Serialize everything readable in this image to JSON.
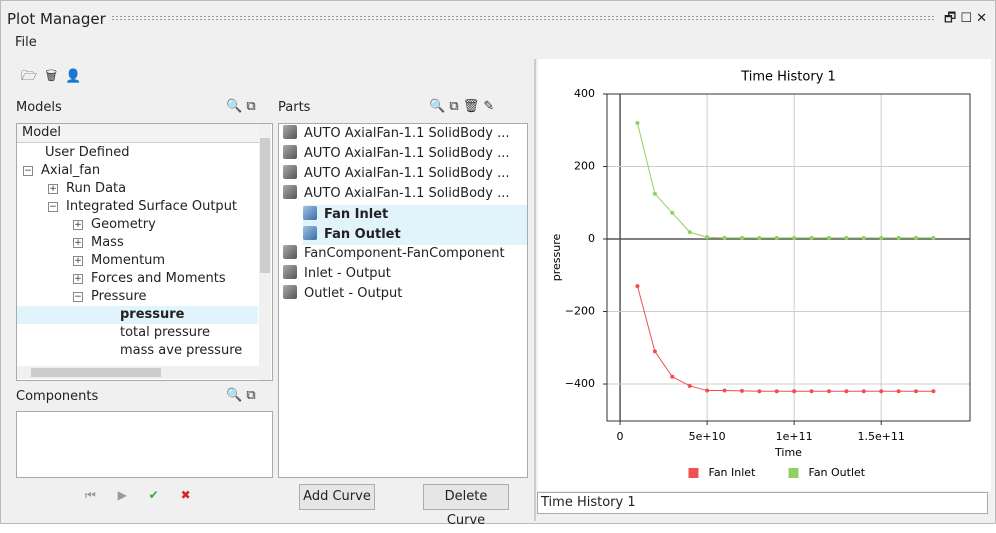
{
  "window": {
    "title": "Plot Manager"
  },
  "menu": [
    "File"
  ],
  "models": {
    "label": "Models",
    "tree_header": "Model",
    "items": [
      "User Defined",
      "Axial_fan",
      "Run Data",
      "Integrated Surface Output",
      "Geometry",
      "Mass",
      "Momentum",
      "Forces and Moments",
      "Pressure",
      "pressure",
      "total pressure",
      "mass ave pressure"
    ]
  },
  "parts": {
    "label": "Parts",
    "items": [
      "AUTO AxialFan-1.1 SolidBody ...",
      "AUTO AxialFan-1.1 SolidBody ...",
      "AUTO AxialFan-1.1 SolidBody ...",
      "AUTO AxialFan-1.1 SolidBody ...",
      "Fan Inlet",
      "Fan Outlet",
      "FanComponent-FanComponent",
      "Inlet - Output",
      "Outlet - Output"
    ]
  },
  "components": {
    "label": "Components"
  },
  "buttons": {
    "add": "Add Curve",
    "delete": "Delete Curve"
  },
  "plot_name": "Time History 1",
  "chart_data": {
    "type": "line",
    "title": "Time History 1",
    "x_label": "Time",
    "y_label": "pressure",
    "x": [
      10000000000,
      20000000000,
      30000000000,
      40000000000,
      50000000000,
      60000000000,
      70000000000,
      80000000000,
      90000000000,
      100000000000,
      110000000000,
      120000000000,
      130000000000,
      140000000000,
      150000000000,
      160000000000,
      170000000000,
      180000000000
    ],
    "series": [
      {
        "name": "Fan Inlet",
        "color": "#f05050",
        "values": [
          -130,
          -310,
          -380,
          -405,
          -418,
          -418,
          -419,
          -420,
          -420,
          -420,
          -420,
          -420,
          -420,
          -420,
          -420,
          -420,
          -420,
          -420
        ]
      },
      {
        "name": "Fan Outlet",
        "color": "#90d060",
        "values": [
          320,
          125,
          72,
          19,
          5,
          3,
          3,
          3,
          3,
          3,
          3,
          3,
          3,
          3,
          3,
          3,
          3,
          3
        ]
      }
    ],
    "xlim": [
      -7500000000,
      201000000000
    ],
    "xticks": [
      0,
      {
        "value": 50000000000,
        "label": "5e+10"
      },
      {
        "value": 100000000000,
        "label": "1e+11"
      },
      {
        "value": 150000000000,
        "label": "1.5e+11"
      }
    ],
    "ylim": [
      -502,
      400
    ],
    "yticks": [
      {
        "value": -400,
        "label": "−400"
      },
      {
        "value": -200,
        "label": "−200"
      },
      0,
      200,
      400
    ],
    "grid": true,
    "legend": "bottom"
  }
}
